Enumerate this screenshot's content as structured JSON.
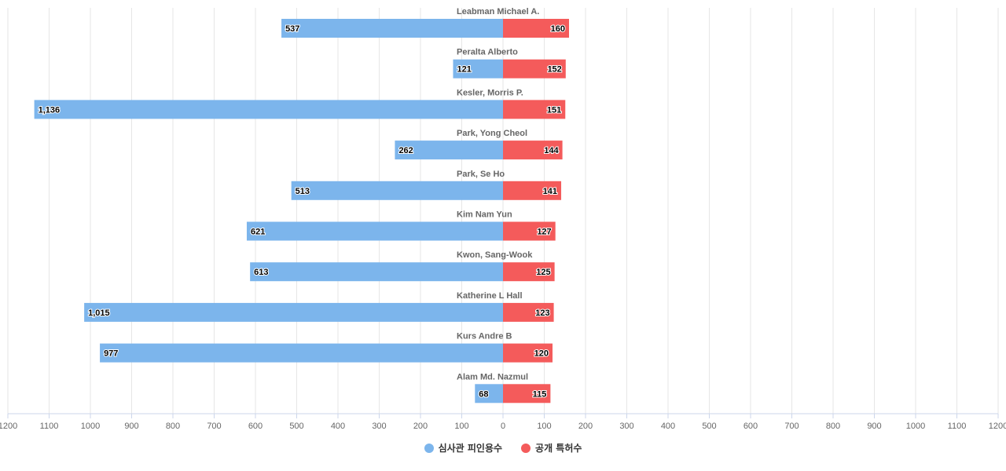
{
  "chart_data": {
    "type": "bar",
    "orientation": "horizontal-diverging",
    "categories": [
      "Leabman Michael A.",
      "Peralta Alberto",
      "Kesler, Morris P.",
      "Park, Yong Cheol",
      "Park, Se Ho",
      "Kim Nam Yun",
      "Kwon, Sang-Wook",
      "Katherine L Hall",
      "Kurs Andre B",
      "Alam Md. Nazmul"
    ],
    "series": [
      {
        "name": "심사관 피인용수",
        "color": "#7cb5ec",
        "side": "left",
        "values": [
          537,
          121,
          1136,
          262,
          513,
          621,
          613,
          1015,
          977,
          68
        ],
        "labels": [
          "537",
          "121",
          "1,136",
          "262",
          "513",
          "621",
          "613",
          "1,015",
          "977",
          "68"
        ]
      },
      {
        "name": "공개 특허수",
        "color": "#f45b5b",
        "side": "right",
        "values": [
          160,
          152,
          151,
          144,
          141,
          127,
          125,
          123,
          120,
          115
        ],
        "labels": [
          "160",
          "152",
          "151",
          "144",
          "141",
          "127",
          "125",
          "123",
          "120",
          "115"
        ]
      }
    ],
    "xlim": [
      -1200,
      1200
    ],
    "x_ticks": [
      "1200",
      "1100",
      "1000",
      "900",
      "800",
      "700",
      "600",
      "500",
      "400",
      "300",
      "200",
      "100",
      "0",
      "100",
      "200",
      "300",
      "400",
      "500",
      "600",
      "700",
      "800",
      "900",
      "1000",
      "1100",
      "1200"
    ],
    "grid": true,
    "legend": "bottom-center"
  }
}
